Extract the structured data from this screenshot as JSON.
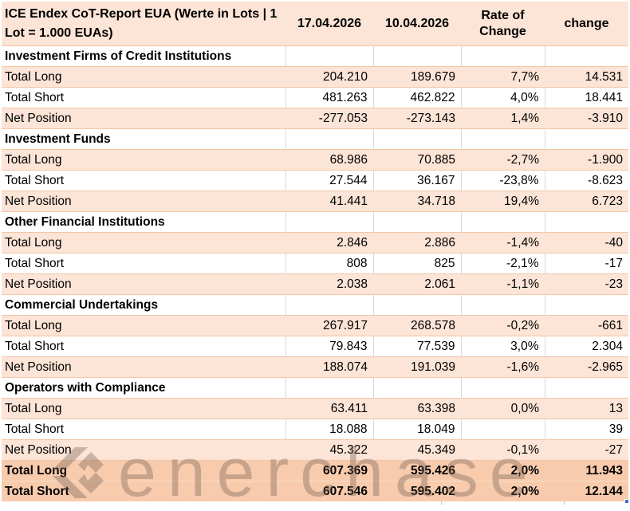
{
  "header": {
    "title": "ICE Endex CoT-Report EUA (Werte in Lots | 1 Lot = 1.000 EUAs)",
    "columns": [
      "17.04.2026",
      "10.04.2026",
      "Rate of Change",
      "change"
    ]
  },
  "sections": [
    {
      "name": "Investment Firms of Credit Institutions",
      "rows": [
        {
          "label": "Total Long",
          "current": "204.210",
          "previous": "189.679",
          "rate": "7,7%",
          "change": "14.531"
        },
        {
          "label": "Total Short",
          "current": "481.263",
          "previous": "462.822",
          "rate": "4,0%",
          "change": "18.441"
        },
        {
          "label": "Net Position",
          "current": "-277.053",
          "previous": "-273.143",
          "rate": "1,4%",
          "change": "-3.910"
        }
      ]
    },
    {
      "name": "Investment Funds",
      "rows": [
        {
          "label": "Total Long",
          "current": "68.986",
          "previous": "70.885",
          "rate": "-2,7%",
          "change": "-1.900"
        },
        {
          "label": "Total Short",
          "current": "27.544",
          "previous": "36.167",
          "rate": "-23,8%",
          "change": "-8.623"
        },
        {
          "label": "Net Position",
          "current": "41.441",
          "previous": "34.718",
          "rate": "19,4%",
          "change": "6.723"
        }
      ]
    },
    {
      "name": "Other Financial Institutions",
      "rows": [
        {
          "label": "Total Long",
          "current": "2.846",
          "previous": "2.886",
          "rate": "-1,4%",
          "change": "-40"
        },
        {
          "label": "Total Short",
          "current": "808",
          "previous": "825",
          "rate": "-2,1%",
          "change": "-17"
        },
        {
          "label": "Net Position",
          "current": "2.038",
          "previous": "2.061",
          "rate": "-1,1%",
          "change": "-23"
        }
      ]
    },
    {
      "name": "Commercial Undertakings",
      "rows": [
        {
          "label": "Total Long",
          "current": "267.917",
          "previous": "268.578",
          "rate": "-0,2%",
          "change": "-661"
        },
        {
          "label": "Total Short",
          "current": "79.843",
          "previous": "77.539",
          "rate": "3,0%",
          "change": "2.304"
        },
        {
          "label": "Net Position",
          "current": "188.074",
          "previous": "191.039",
          "rate": "-1,6%",
          "change": "-2.965"
        }
      ]
    },
    {
      "name": "Operators with Compliance",
      "rows": [
        {
          "label": "Total Long",
          "current": "63.411",
          "previous": "63.398",
          "rate": "0,0%",
          "change": "13"
        },
        {
          "label": "Total Short",
          "current": "18.088",
          "previous": "18.049",
          "rate": "",
          "change": "39"
        },
        {
          "label": "Net Position",
          "current": "45.322",
          "previous": "45.349",
          "rate": "-0,1%",
          "change": "-27"
        }
      ]
    }
  ],
  "totals": [
    {
      "label": "Total Long",
      "current": "607.369",
      "previous": "595.426",
      "rate": "2,0%",
      "change": "11.943"
    },
    {
      "label": "Total Short",
      "current": "607.546",
      "previous": "595.402",
      "rate": "2,0%",
      "change": "12.144"
    }
  ],
  "watermark": {
    "text": "enerchase"
  },
  "colors": {
    "band_peach": "#FCE4D6",
    "totals_peach": "#F8CBAD",
    "fill_handle_blue": "#4472C4"
  }
}
